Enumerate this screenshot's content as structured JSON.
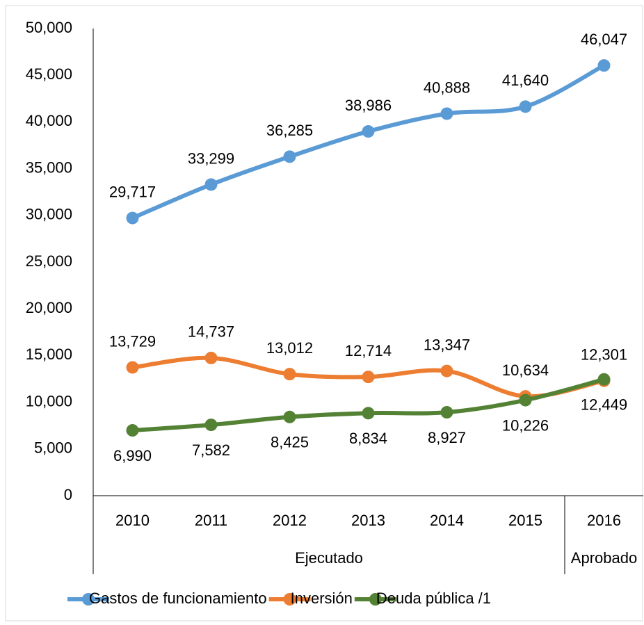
{
  "chart_data": {
    "type": "line",
    "categories": [
      "2010",
      "2011",
      "2012",
      "2013",
      "2014",
      "2015",
      "2016"
    ],
    "x_groups": [
      {
        "label": "Ejecutado",
        "span": 6
      },
      {
        "label": "Aprobado",
        "span": 1
      }
    ],
    "series": [
      {
        "name": "Gastos de funcionamiento",
        "color": "#5b9bd5",
        "label_position": "above",
        "values": [
          29717,
          33299,
          36285,
          38986,
          40888,
          41640,
          46047
        ],
        "value_labels": [
          "29,717",
          "33,299",
          "36,285",
          "38,986",
          "40,888",
          "41,640",
          "46,047"
        ]
      },
      {
        "name": "Inversión",
        "color": "#ed7d31",
        "label_position": "above",
        "values": [
          13729,
          14737,
          13012,
          12714,
          13347,
          10634,
          12301
        ],
        "value_labels": [
          "13,729",
          "14,737",
          "13,012",
          "12,714",
          "13,347",
          "10,634",
          "12,301"
        ]
      },
      {
        "name": "Deuda pública /1",
        "color": "#548235",
        "label_position": "below",
        "values": [
          6990,
          7582,
          8425,
          8834,
          8927,
          10226,
          12449
        ],
        "value_labels": [
          "6,990",
          "7,582",
          "8,425",
          "8,834",
          "8,927",
          "10,226",
          "12,449"
        ]
      }
    ],
    "ylim": [
      0,
      50000
    ],
    "yticks": [
      0,
      {
        "value": 5000,
        "label": "5,000"
      },
      {
        "value": 10000,
        "label": "10,000"
      },
      {
        "value": 15000,
        "label": "15,000"
      },
      {
        "value": 20000,
        "label": "20,000"
      },
      {
        "value": 25000,
        "label": "25,000"
      },
      {
        "value": 30000,
        "label": "30,000"
      },
      {
        "value": 35000,
        "label": "35,000"
      },
      {
        "value": 40000,
        "label": "40,000"
      },
      {
        "value": 45000,
        "label": "45,000"
      },
      {
        "value": 50000,
        "label": "50,000"
      }
    ],
    "grid": false,
    "smooth": true,
    "legend": "bottom"
  }
}
